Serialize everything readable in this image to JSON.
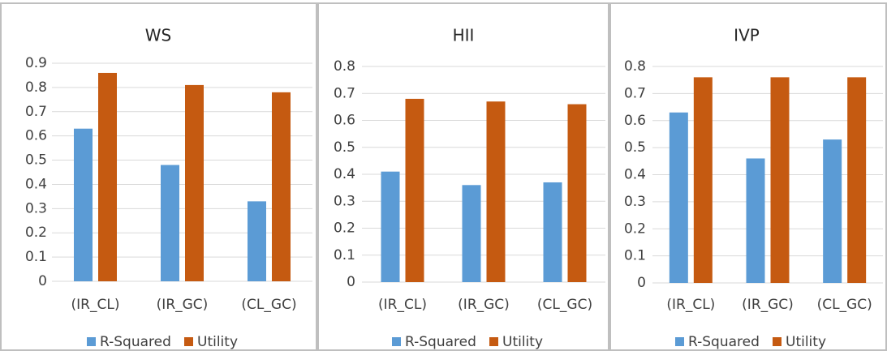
{
  "chart_data": [
    {
      "type": "bar",
      "title": "WS",
      "categories": [
        "(IR_CL)",
        "(IR_GC)",
        "(CL_GC)"
      ],
      "series": [
        {
          "name": "R-Squared",
          "color": "#5b9bd5",
          "values": [
            0.63,
            0.48,
            0.33
          ]
        },
        {
          "name": "Utility",
          "color": "#c55a11",
          "values": [
            0.86,
            0.81,
            0.78
          ]
        }
      ],
      "ylim": [
        0,
        0.9
      ],
      "yticks": [
        0,
        0.1,
        0.2,
        0.3,
        0.4,
        0.5,
        0.6,
        0.7,
        0.8,
        0.9
      ],
      "grid": true,
      "legend": "bottom"
    },
    {
      "type": "bar",
      "title": "HII",
      "categories": [
        "(IR_CL)",
        "(IR_GC)",
        "(CL_GC)"
      ],
      "series": [
        {
          "name": "R-Squared",
          "color": "#5b9bd5",
          "values": [
            0.41,
            0.36,
            0.37
          ]
        },
        {
          "name": "Utility",
          "color": "#c55a11",
          "values": [
            0.68,
            0.67,
            0.66
          ]
        }
      ],
      "ylim": [
        0,
        0.8
      ],
      "yticks": [
        0,
        0.1,
        0.2,
        0.3,
        0.4,
        0.5,
        0.6,
        0.7,
        0.8
      ],
      "grid": true,
      "legend": "bottom"
    },
    {
      "type": "bar",
      "title": "IVP",
      "categories": [
        "(IR_CL)",
        "(IR_GC)",
        "(CL_GC)"
      ],
      "series": [
        {
          "name": "R-Squared",
          "color": "#5b9bd5",
          "values": [
            0.63,
            0.46,
            0.53
          ]
        },
        {
          "name": "Utility",
          "color": "#c55a11",
          "values": [
            0.76,
            0.76,
            0.76
          ]
        }
      ],
      "ylim": [
        0,
        0.8
      ],
      "yticks": [
        0,
        0.1,
        0.2,
        0.3,
        0.4,
        0.5,
        0.6,
        0.7,
        0.8
      ],
      "grid": true,
      "legend": "bottom"
    }
  ]
}
